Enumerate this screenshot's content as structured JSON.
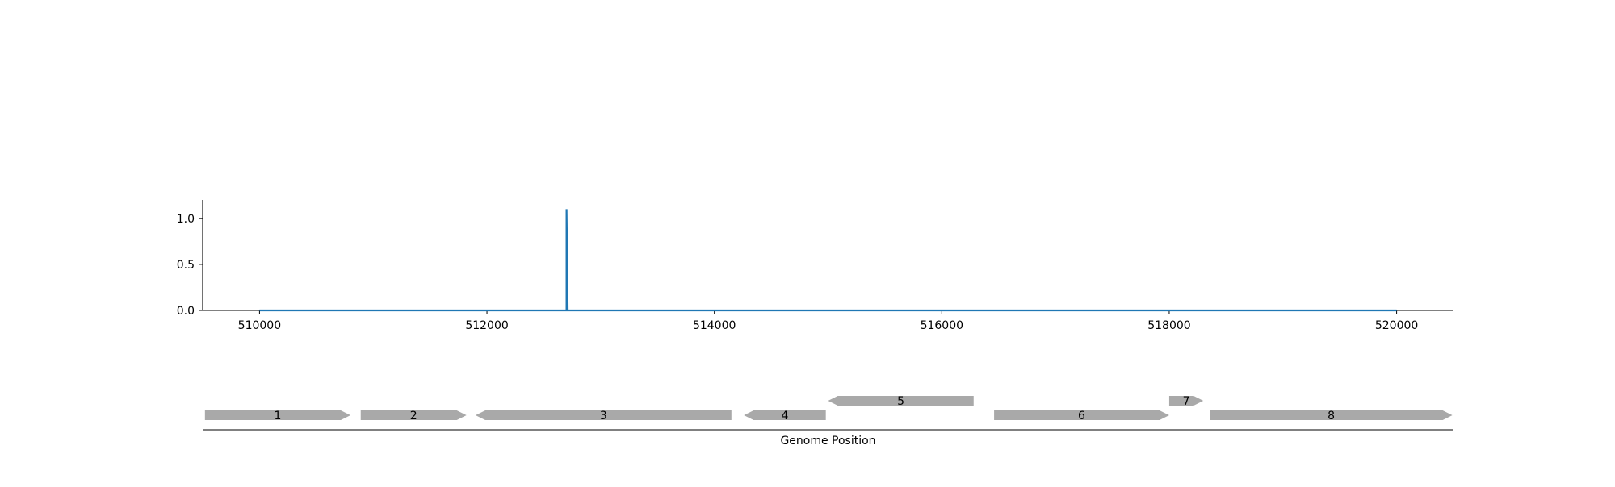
{
  "colors": {
    "signal": "#1f77b4",
    "gene": "#a9a9a9",
    "axis": "#000000",
    "background": "#ffffff"
  },
  "chart_data": [
    {
      "type": "line",
      "title": "",
      "xlabel": "",
      "ylabel": "",
      "xlim": [
        509500,
        520500
      ],
      "ylim": [
        0,
        1.2
      ],
      "x_ticks": [
        510000,
        512000,
        514000,
        516000,
        518000,
        520000
      ],
      "y_ticks": [
        0.0,
        0.5,
        1.0
      ],
      "x_tick_labels": [
        "510000",
        "512000",
        "514000",
        "516000",
        "518000",
        "520000"
      ],
      "y_tick_labels": [
        "0.0",
        "0.5",
        "1.0"
      ],
      "grid": false,
      "series": [
        {
          "x": [
            510000,
            512700,
            512700,
            512700,
            512710,
            520000
          ],
          "y": [
            0.0,
            0.0,
            0.0,
            1.1,
            0.0,
            0.0
          ]
        }
      ]
    },
    {
      "type": "gene-track",
      "xlabel": "Genome Position",
      "xlim": [
        509500,
        520500
      ],
      "genes": [
        {
          "label": "1",
          "start": 509520,
          "end": 510800,
          "strand": "+",
          "level": 0
        },
        {
          "label": "2",
          "start": 510890,
          "end": 511820,
          "strand": "+",
          "level": 0
        },
        {
          "label": "3",
          "start": 511900,
          "end": 514150,
          "strand": "-",
          "level": 0
        },
        {
          "label": "4",
          "start": 514260,
          "end": 514980,
          "strand": "-",
          "level": 0
        },
        {
          "label": "5",
          "start": 515000,
          "end": 516280,
          "strand": "-",
          "level": 1
        },
        {
          "label": "6",
          "start": 516460,
          "end": 518000,
          "strand": "+",
          "level": 0
        },
        {
          "label": "7",
          "start": 518000,
          "end": 518300,
          "strand": "+",
          "level": 1
        },
        {
          "label": "8",
          "start": 518360,
          "end": 520490,
          "strand": "+",
          "level": 0
        }
      ]
    }
  ]
}
